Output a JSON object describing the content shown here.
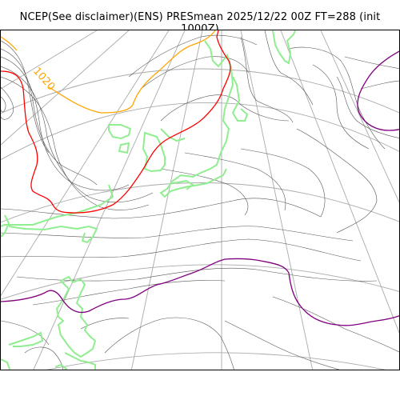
{
  "title": "NCEP(See disclaimer)(ENS) PRESmean 2025/12/22 00Z FT=288 (init 1000Z)",
  "map": {
    "contour_label": "1020",
    "colors": {
      "isobar": "#555555",
      "graticule": "#aaaaaa",
      "coastline": "#90ee90",
      "contour_1020": "#ffa500",
      "contour_red": "#ff0000",
      "contour_purple": "#800080"
    }
  }
}
